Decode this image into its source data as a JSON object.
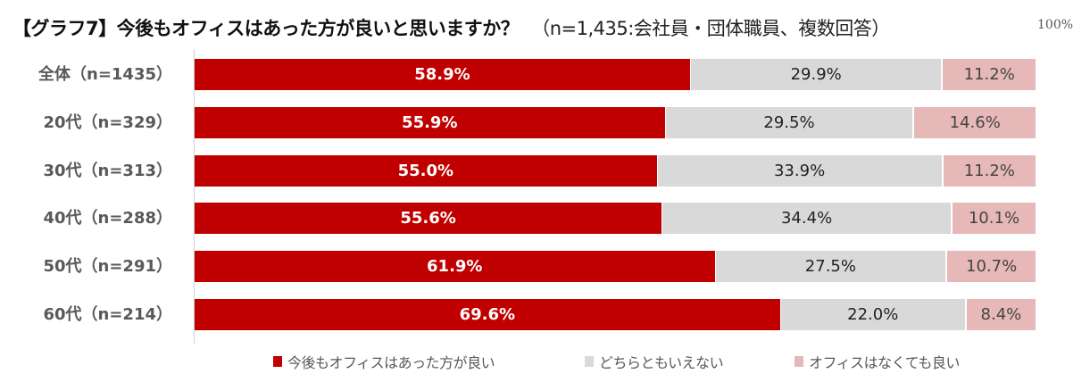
{
  "title": {
    "main": "【グラフ7】今後もオフィスはあった方が良いと思いますか？",
    "sub": "（n=1,435:会社員・団体職員、複数回答）"
  },
  "axis": {
    "max_label": "100%"
  },
  "colors": {
    "series_0": "#c00000",
    "series_1": "#d9d9d9",
    "series_2": "#e6b8b7"
  },
  "legend": [
    {
      "label": "今後もオフィスはあった方が良い",
      "color": "#c00000"
    },
    {
      "label": "どちらともいえない",
      "color": "#d9d9d9"
    },
    {
      "label": "オフィスはなくても良い",
      "color": "#e6b8b7"
    }
  ],
  "rows": [
    {
      "label": "全体（n=1435）",
      "values": [
        "58.9%",
        "29.9%",
        "11.2%"
      ]
    },
    {
      "label": "20代（n=329）",
      "values": [
        "55.9%",
        "29.5%",
        "14.6%"
      ]
    },
    {
      "label": "30代（n=313）",
      "values": [
        "55.0%",
        "33.9%",
        "11.2%"
      ]
    },
    {
      "label": "40代（n=288）",
      "values": [
        "55.6%",
        "34.4%",
        "10.1%"
      ]
    },
    {
      "label": "50代（n=291）",
      "values": [
        "61.9%",
        "27.5%",
        "10.7%"
      ]
    },
    {
      "label": "60代（n=214）",
      "values": [
        "69.6%",
        "22.0%",
        "8.4%"
      ]
    }
  ],
  "chart_data": {
    "type": "bar",
    "orientation": "horizontal",
    "stacked": true,
    "percent_stacked": true,
    "title": "【グラフ7】今後もオフィスはあった方が良いと思いますか？（n=1,435:会社員・団体職員、複数回答）",
    "xlabel": "",
    "ylabel": "",
    "xlim": [
      0,
      100
    ],
    "axis_max_label": "100%",
    "grid": false,
    "legend_position": "bottom",
    "categories": [
      "全体（n=1435）",
      "20代（n=329）",
      "30代（n=313）",
      "40代（n=288）",
      "50代（n=291）",
      "60代（n=214）"
    ],
    "series": [
      {
        "name": "今後もオフィスはあった方が良い",
        "color": "#c00000",
        "values": [
          58.9,
          55.9,
          55.0,
          55.6,
          61.9,
          69.6
        ]
      },
      {
        "name": "どちらともいえない",
        "color": "#d9d9d9",
        "values": [
          29.9,
          29.5,
          33.9,
          34.4,
          27.5,
          22.0
        ]
      },
      {
        "name": "オフィスはなくても良い",
        "color": "#e6b8b7",
        "values": [
          11.2,
          14.6,
          11.2,
          10.1,
          10.7,
          8.4
        ]
      }
    ]
  }
}
